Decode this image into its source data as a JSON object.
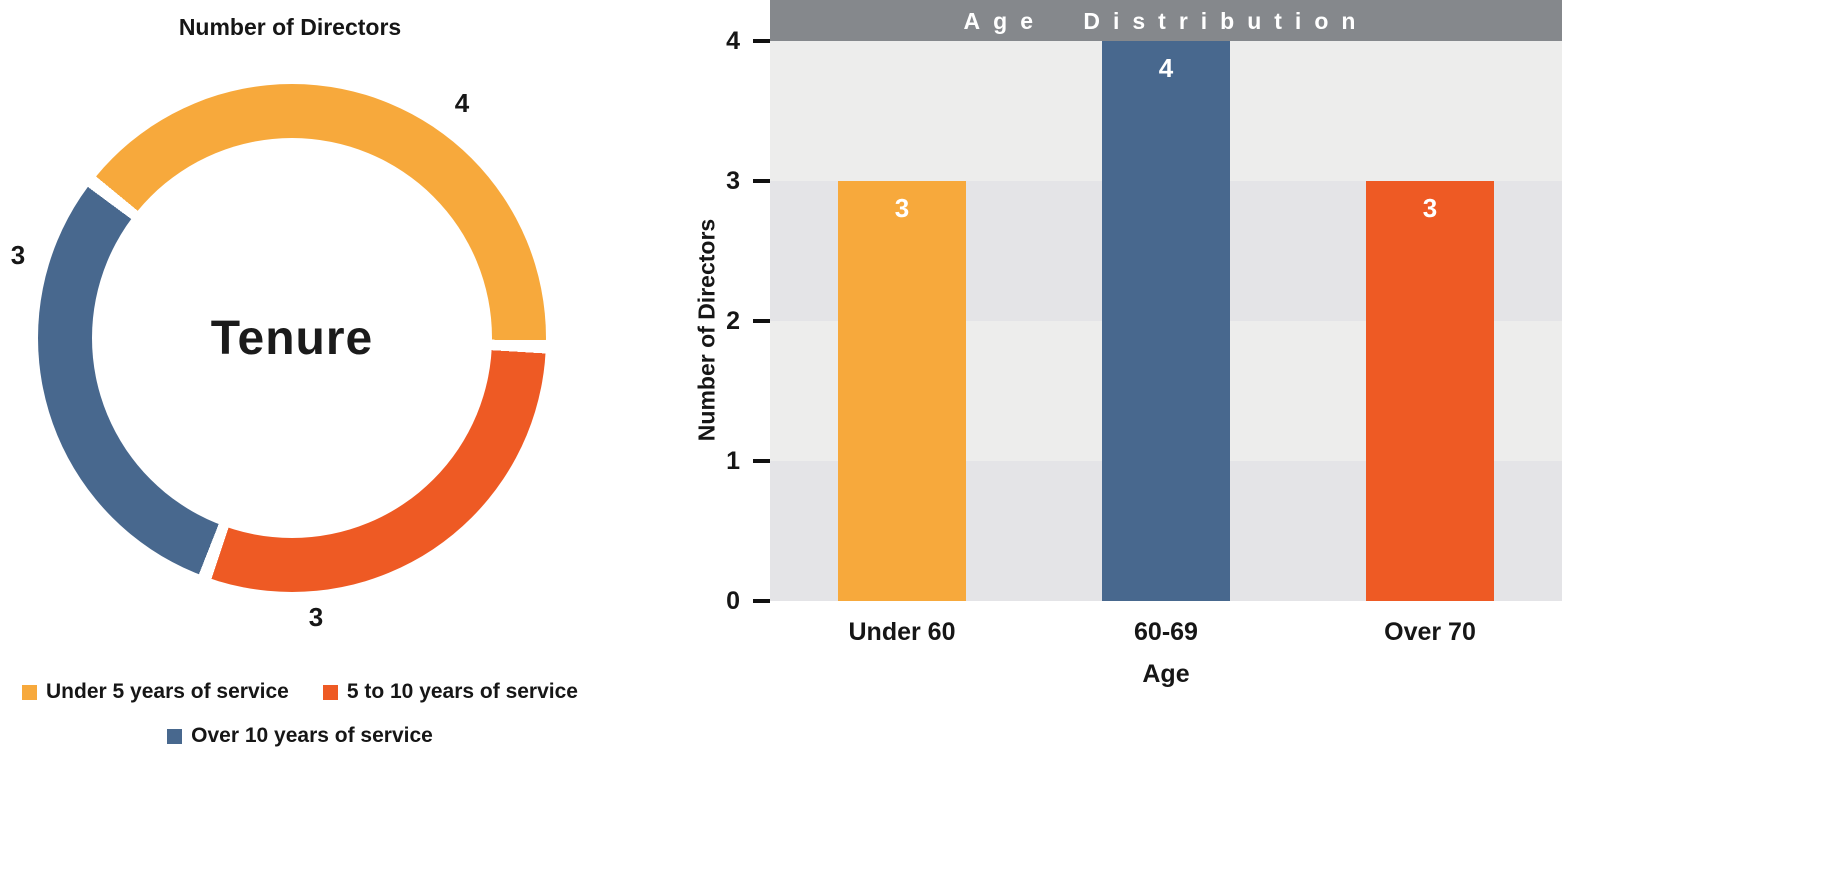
{
  "colors": {
    "yellow": "#F7A93C",
    "orange": "#EE5A24",
    "blue": "#48688E",
    "header_bg": "#85888C",
    "stripe_light": "#EDEDEC",
    "stripe_dark": "#E4E4E7",
    "text": "#161616",
    "white": "#FFFFFF"
  },
  "chart_data": [
    {
      "type": "pie",
      "donut": true,
      "title": "Number of Directors",
      "center_label": "Tenure",
      "labels": [
        "Under 5 years of service",
        "5 to 10 years of service",
        "Over 10 years of service"
      ],
      "values": [
        4,
        3,
        3
      ],
      "colors": [
        "#F7A93C",
        "#EE5A24",
        "#48688E"
      ],
      "legend_position": "bottom"
    },
    {
      "type": "bar",
      "title": "Age Distribution",
      "categories": [
        "Under 60",
        "60-69",
        "Over 70"
      ],
      "values": [
        3,
        4,
        3
      ],
      "colors": [
        "#F7A93C",
        "#48688E",
        "#EE5A24"
      ],
      "xlabel": "Age",
      "ylabel": "Number of Directors",
      "ylim": [
        0,
        4
      ],
      "yticks": [
        0,
        1,
        2,
        3,
        4
      ],
      "grid": "banded",
      "legend_position": "none"
    }
  ]
}
